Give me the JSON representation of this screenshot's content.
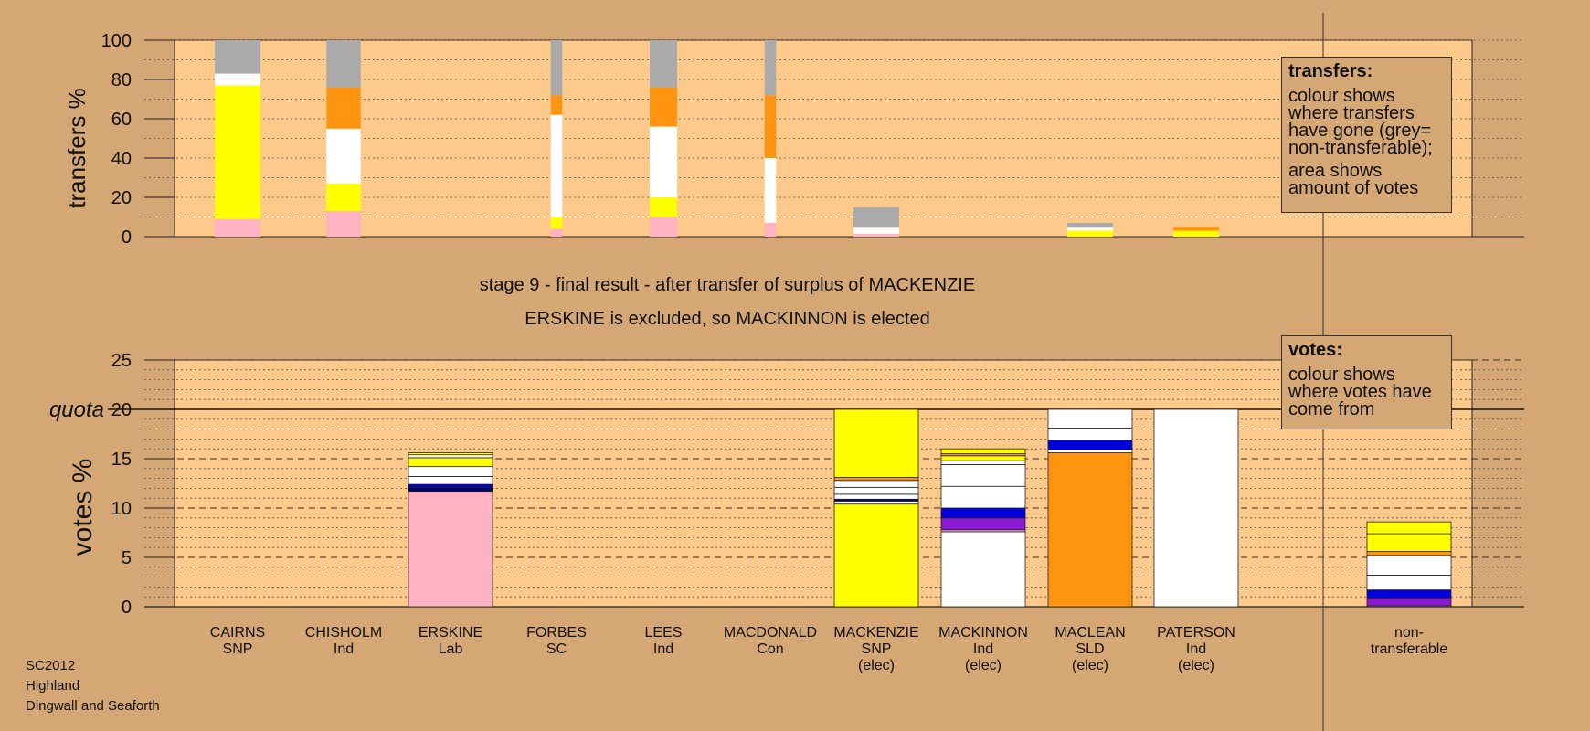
{
  "colors": {
    "background": "#d4a774",
    "panel": "#fdca8b",
    "grey": "#aaaaaa",
    "white": "#ffffff",
    "yellow": "#ffff00",
    "orange": "#ff9410",
    "pink": "#ffb2c2",
    "blue": "#0000dd",
    "navy": "#000066",
    "purple": "#8a19d4"
  },
  "subtitle": {
    "line1": "stage 9 - final result - after transfer of surplus of MACKENZIE",
    "line2": "ERSKINE is excluded, so MACKINNON is elected"
  },
  "legend_transfers": {
    "heading": "transfers:",
    "text1": "colour shows where transfers have gone (grey= non-transferable);",
    "text2": "area shows amount of votes"
  },
  "legend_votes": {
    "heading": "votes:",
    "text1": "colour shows where votes have come from"
  },
  "meta": {
    "line1": "SC2012",
    "line2": "Highland",
    "line3": "Dingwall and Seaforth"
  },
  "chart_data": [
    {
      "type": "bar",
      "subtype": "stacked-transfers",
      "ylabel": "transfers %",
      "ylim": [
        0,
        100
      ],
      "yticks": [
        0,
        20,
        40,
        60,
        80,
        100
      ],
      "grid": true,
      "bars": [
        {
          "candidate": "CAIRNS",
          "width_factor": 1.0,
          "segments": [
            [
              "pink",
              9
            ],
            [
              "yellow",
              68
            ],
            [
              "white",
              6
            ],
            [
              "grey",
              17
            ]
          ]
        },
        {
          "candidate": "CHISHOLM",
          "width_factor": 0.75,
          "segments": [
            [
              "pink",
              13
            ],
            [
              "yellow",
              14
            ],
            [
              "white",
              28
            ],
            [
              "orange",
              21
            ],
            [
              "grey",
              24
            ]
          ]
        },
        {
          "candidate": "FORBES",
          "width_factor": 0.25,
          "segments": [
            [
              "pink",
              4
            ],
            [
              "yellow",
              6
            ],
            [
              "white",
              52
            ],
            [
              "orange",
              10
            ],
            [
              "grey",
              28
            ]
          ]
        },
        {
          "candidate": "LEES",
          "width_factor": 0.6,
          "segments": [
            [
              "pink",
              10
            ],
            [
              "yellow",
              10
            ],
            [
              "white",
              36
            ],
            [
              "orange",
              20
            ],
            [
              "grey",
              24
            ]
          ]
        },
        {
          "candidate": "MACDONALD",
          "width_factor": 0.25,
          "segments": [
            [
              "pink",
              7
            ],
            [
              "white",
              33
            ],
            [
              "orange",
              32
            ],
            [
              "grey",
              28
            ]
          ]
        },
        {
          "candidate": "MACKENZIE",
          "width_factor": 1.0,
          "segments": [
            [
              "pink",
              1.5
            ],
            [
              "white",
              3.5
            ],
            [
              "grey",
              10
            ]
          ]
        },
        {
          "candidate": "MACLEAN",
          "width_factor": 1.0,
          "segments": [
            [
              "yellow",
              3
            ],
            [
              "white",
              2
            ],
            [
              "grey",
              2
            ]
          ]
        },
        {
          "candidate": "PATERSON",
          "width_factor": 1.0,
          "segments": [
            [
              "yellow",
              3
            ],
            [
              "orange",
              2
            ]
          ]
        }
      ]
    },
    {
      "type": "bar",
      "subtype": "stacked-votes",
      "ylabel": "votes %",
      "ylim": [
        0,
        25
      ],
      "yticks": [
        0,
        5,
        10,
        15,
        20,
        25
      ],
      "quota": 20,
      "quota_label": "quota",
      "grid": true,
      "categories": [
        {
          "name": "CAIRNS",
          "party": "SNP",
          "status": ""
        },
        {
          "name": "CHISHOLM",
          "party": "Ind",
          "status": ""
        },
        {
          "name": "ERSKINE",
          "party": "Lab",
          "status": ""
        },
        {
          "name": "FORBES",
          "party": "SC",
          "status": ""
        },
        {
          "name": "LEES",
          "party": "Ind",
          "status": ""
        },
        {
          "name": "MACDONALD",
          "party": "Con",
          "status": ""
        },
        {
          "name": "MACKENZIE",
          "party": "SNP",
          "status": "(elec)"
        },
        {
          "name": "MACKINNON",
          "party": "Ind",
          "status": "(elec)"
        },
        {
          "name": "MACLEAN",
          "party": "SLD",
          "status": "(elec)"
        },
        {
          "name": "PATERSON",
          "party": "Ind",
          "status": "(elec)"
        },
        {
          "name": "",
          "party": "",
          "status": ""
        },
        {
          "name": "non-",
          "party": "transferable",
          "status": ""
        }
      ],
      "bars": [
        {
          "index": 2,
          "segments": [
            [
              "pink",
              11.7
            ],
            [
              "navy",
              0.4
            ],
            [
              "blue",
              0.3
            ],
            [
              "white",
              0.8
            ],
            [
              "white",
              1.0
            ],
            [
              "yellow",
              0.9
            ],
            [
              "white",
              0.3
            ],
            [
              "yellow",
              0.2
            ]
          ]
        },
        {
          "index": 6,
          "segments": [
            [
              "yellow",
              10.4
            ],
            [
              "white",
              0.3
            ],
            [
              "navy",
              0.2
            ],
            [
              "white",
              0.5
            ],
            [
              "white",
              0.7
            ],
            [
              "white",
              0.7
            ],
            [
              "orange",
              0.3
            ],
            [
              "yellow",
              6.9
            ]
          ]
        },
        {
          "index": 7,
          "segments": [
            [
              "white",
              7.6
            ],
            [
              "pink",
              0.2
            ],
            [
              "purple",
              1.2
            ],
            [
              "blue",
              1.0
            ],
            [
              "white",
              2.2
            ],
            [
              "white",
              2.2
            ],
            [
              "white",
              0.4
            ],
            [
              "yellow",
              0.5
            ],
            [
              "orange",
              0.2
            ],
            [
              "yellow",
              0.5
            ]
          ]
        },
        {
          "index": 8,
          "segments": [
            [
              "orange",
              15.6
            ],
            [
              "white",
              0.3
            ],
            [
              "blue",
              1.0
            ],
            [
              "white",
              1.2
            ],
            [
              "white",
              1.9
            ]
          ]
        },
        {
          "index": 9,
          "segments": [
            [
              "white",
              20.0
            ]
          ]
        },
        {
          "index": 11,
          "segments": [
            [
              "pink",
              0.1
            ],
            [
              "purple",
              0.8
            ],
            [
              "blue",
              0.8
            ],
            [
              "white",
              1.5
            ],
            [
              "white",
              2.0
            ],
            [
              "orange",
              0.4
            ],
            [
              "yellow",
              1.8
            ],
            [
              "yellow",
              1.2
            ]
          ]
        }
      ]
    }
  ]
}
